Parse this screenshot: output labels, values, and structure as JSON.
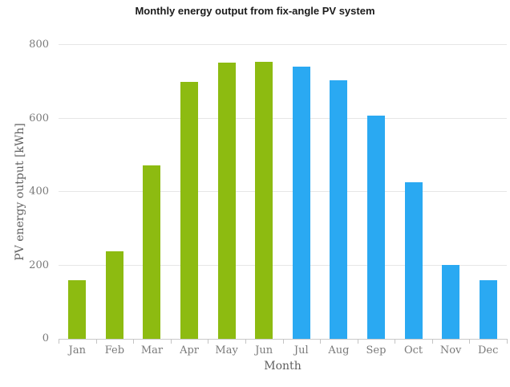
{
  "chart_data": {
    "type": "bar",
    "title": "Monthly energy output from fix-angle PV system",
    "categories": [
      "Jan",
      "Feb",
      "Mar",
      "Apr",
      "May",
      "Jun",
      "Jul",
      "Aug",
      "Sep",
      "Oct",
      "Nov",
      "Dec"
    ],
    "values": [
      160,
      238,
      472,
      700,
      751,
      755,
      740,
      703,
      608,
      426,
      202,
      160
    ],
    "bar_colors": [
      "#8dbb11",
      "#8dbb11",
      "#8dbb11",
      "#8dbb11",
      "#8dbb11",
      "#8dbb11",
      "#2aa9f2",
      "#2aa9f2",
      "#2aa9f2",
      "#2aa9f2",
      "#2aa9f2",
      "#2aa9f2"
    ],
    "xlabel": "Month",
    "ylabel": "PV energy output [kWh]",
    "ylim": [
      0,
      800
    ],
    "yticks": [
      0,
      200,
      400,
      600,
      800
    ],
    "grid": "horizontal-only",
    "legend": "none",
    "colors": {
      "green_bars": "#8dbb11",
      "blue_bars": "#2aa9f2",
      "gridline": "#e6e6e6",
      "axis_line": "#c9c9c9",
      "tick_label_text": "#7a7a7a",
      "axis_title_text": "#5f5f5f",
      "title_text": "#1b1b1b",
      "background": "#ffffff"
    }
  }
}
